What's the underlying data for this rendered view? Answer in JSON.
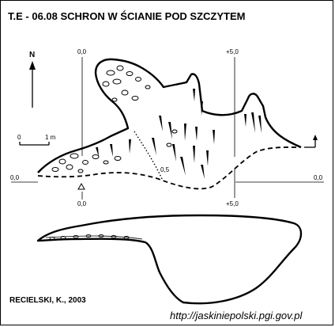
{
  "title": "T.E - 06.08  SCHRON W ŚCIANIE POD SZCZYTEM",
  "north_label": "N",
  "scale": {
    "start": "0",
    "end": "1 m"
  },
  "markers": {
    "left_top": "0,0",
    "left_side": "0,0",
    "left_bottom": "0,0",
    "right_top": "+5,0",
    "right_side": "0,0",
    "right_bottom": "+5,0",
    "inner_depth": "0,5"
  },
  "author": "RECIELSKI, K., 2003",
  "source_url": "http://jaskiniepolski.pgi.gov.pl"
}
